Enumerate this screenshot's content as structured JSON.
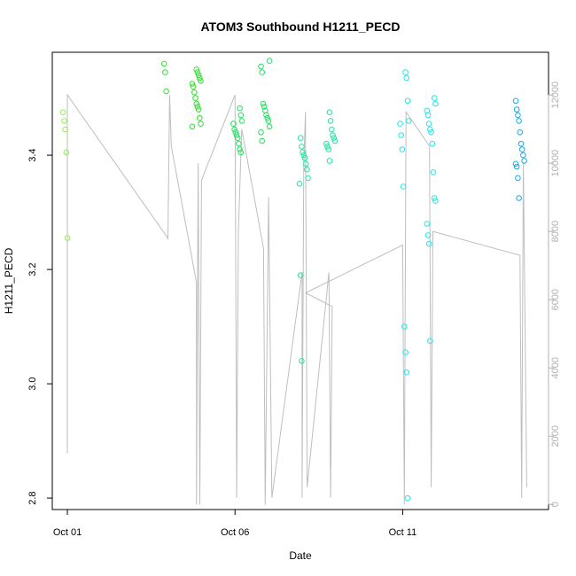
{
  "chart_data": {
    "type": "scatter",
    "title": "ATOM3 Southbound H1211_PECD",
    "xlabel": "Date",
    "ylabel": "H1211_PECD",
    "x_ticks": [
      "Oct 01",
      "Oct 06",
      "Oct 11"
    ],
    "x_tick_days": [
      1,
      6,
      11
    ],
    "xlim_days": [
      0.55,
      15.35
    ],
    "ylim": [
      2.78,
      3.58
    ],
    "y_ticks": [
      2.8,
      3.0,
      3.2,
      3.4
    ],
    "y2_ticks": [
      0,
      2000,
      4000,
      6000,
      8000,
      10000,
      12000
    ],
    "y2lim": [
      -150,
      13250
    ],
    "point_colors": {
      "light_green": "#90ee50",
      "green": "#2ee02e",
      "green2": "#22e060",
      "cyan_green": "#20e6a0",
      "cyan": "#22e8e8",
      "blue": "#1aa8e8"
    },
    "line_color": "#bebebe",
    "groups": [
      {
        "day": 1.0,
        "color": "light_green",
        "values": [
          3.475,
          3.46,
          3.445,
          3.405,
          3.255
        ]
      },
      {
        "day": 3.95,
        "color": "green",
        "values": [
          3.56,
          3.545,
          3.512
        ]
      },
      {
        "day": 4.85,
        "color": "green",
        "values": [
          3.55,
          3.545,
          3.54,
          3.535,
          3.53,
          3.525,
          3.52,
          3.51,
          3.5,
          3.49,
          3.485,
          3.48,
          3.465,
          3.455,
          3.45
        ]
      },
      {
        "day": 6.08,
        "color": "green2",
        "values": [
          3.482,
          3.47,
          3.46,
          3.455,
          3.445,
          3.44,
          3.435,
          3.43,
          3.42,
          3.41,
          3.405
        ]
      },
      {
        "day": 6.9,
        "color": "green2",
        "values": [
          3.565,
          3.555,
          3.545,
          3.49,
          3.485,
          3.478,
          3.47,
          3.465,
          3.46,
          3.45,
          3.44,
          3.425
        ]
      },
      {
        "day": 8.05,
        "color": "cyan_green",
        "values": [
          3.43,
          3.415,
          3.405,
          3.4,
          3.395,
          3.385,
          3.375,
          3.36,
          3.35,
          3.19,
          3.04
        ]
      },
      {
        "day": 8.85,
        "color": "cyan_green",
        "values": [
          3.475,
          3.46,
          3.445,
          3.435,
          3.43,
          3.425,
          3.42,
          3.415,
          3.41,
          3.39
        ]
      },
      {
        "day": 11.05,
        "color": "cyan",
        "values": [
          3.545,
          3.535,
          3.495,
          3.46,
          3.455,
          3.435,
          3.41,
          3.345,
          3.1,
          3.055,
          3.02,
          2.8
        ]
      },
      {
        "day": 11.85,
        "color": "cyan",
        "values": [
          3.5,
          3.49,
          3.478,
          3.47,
          3.455,
          3.445,
          3.44,
          3.42,
          3.37,
          3.325,
          3.32,
          3.28,
          3.26,
          3.245,
          3.075
        ]
      },
      {
        "day": 14.5,
        "color": "blue",
        "values": [
          3.495,
          3.48,
          3.47,
          3.46,
          3.44,
          3.42,
          3.41,
          3.4,
          3.39,
          3.385,
          3.38,
          3.36,
          3.325
        ]
      }
    ],
    "altitude_series": {
      "axis": "right",
      "points": [
        [
          1.0,
          1500
        ],
        [
          1.0,
          12000
        ],
        [
          4.0,
          7800
        ],
        [
          4.05,
          12000
        ],
        [
          4.1,
          10500
        ],
        [
          4.85,
          6500
        ],
        [
          4.85,
          0
        ],
        [
          4.9,
          10000
        ],
        [
          4.95,
          0
        ],
        [
          5.0,
          9500
        ],
        [
          6.0,
          12000
        ],
        [
          6.05,
          200
        ],
        [
          6.1,
          8000
        ],
        [
          6.2,
          11000
        ],
        [
          6.85,
          7500
        ],
        [
          6.9,
          0
        ],
        [
          7.0,
          9000
        ],
        [
          7.1,
          200
        ],
        [
          8.0,
          6800
        ],
        [
          8.0,
          200
        ],
        [
          8.05,
          10000
        ],
        [
          8.1,
          11500
        ],
        [
          8.15,
          500
        ],
        [
          8.8,
          6800
        ],
        [
          8.85,
          200
        ],
        [
          8.9,
          5800
        ],
        [
          8.1,
          6200
        ],
        [
          11.0,
          7600
        ],
        [
          11.05,
          0
        ],
        [
          11.1,
          11500
        ],
        [
          11.8,
          10500
        ],
        [
          11.85,
          500
        ],
        [
          11.9,
          8000
        ],
        [
          14.5,
          7300
        ],
        [
          14.55,
          200
        ],
        [
          14.6,
          10000
        ],
        [
          14.7,
          500
        ]
      ]
    }
  }
}
